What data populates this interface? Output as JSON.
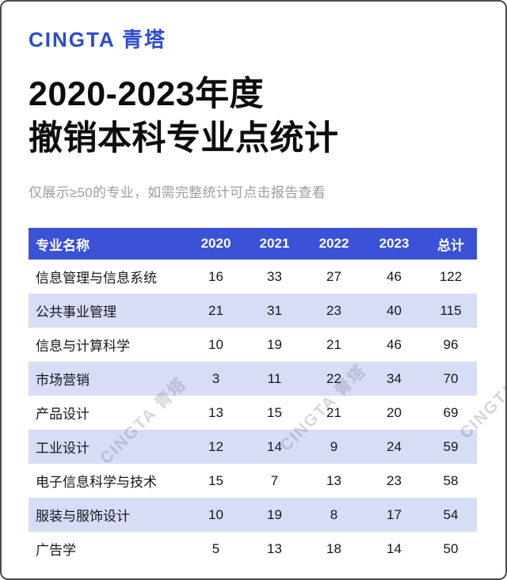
{
  "brand": {
    "logo_text": "CINGTA 青塔"
  },
  "title": {
    "line1": "2020-2023年度",
    "line2": "撤销本科专业点统计"
  },
  "subtitle": "仅展示≥50的专业，如需完整统计可点击报告查看",
  "watermark": {
    "text": "CINGTA 青塔"
  },
  "colors": {
    "brand": "#2B4BD1",
    "table_header_bg": "#3B51D6",
    "table_stripe_bg": "#D7DDF5"
  },
  "table": {
    "columns": [
      "专业名称",
      "2020",
      "2021",
      "2022",
      "2023",
      "总计"
    ],
    "rows": [
      {
        "name": "信息管理与信息系统",
        "values": [
          16,
          33,
          27,
          46,
          122
        ]
      },
      {
        "name": "公共事业管理",
        "values": [
          21,
          31,
          23,
          40,
          115
        ]
      },
      {
        "name": "信息与计算科学",
        "values": [
          10,
          19,
          21,
          46,
          96
        ]
      },
      {
        "name": "市场营销",
        "values": [
          3,
          11,
          22,
          34,
          70
        ]
      },
      {
        "name": "产品设计",
        "values": [
          13,
          15,
          21,
          20,
          69
        ]
      },
      {
        "name": "工业设计",
        "values": [
          12,
          14,
          9,
          24,
          59
        ]
      },
      {
        "name": "电子信息科学与技术",
        "values": [
          15,
          7,
          13,
          23,
          58
        ]
      },
      {
        "name": "服装与服饰设计",
        "values": [
          10,
          19,
          8,
          17,
          54
        ]
      },
      {
        "name": "广告学",
        "values": [
          5,
          13,
          18,
          14,
          50
        ]
      }
    ]
  },
  "chart_data": {
    "type": "table",
    "title": "2020-2023年度撤销本科专业点统计",
    "subtitle": "仅展示≥50的专业，如需完整统计可点击报告查看",
    "columns": [
      "专业名称",
      "2020",
      "2021",
      "2022",
      "2023",
      "总计"
    ],
    "rows": [
      [
        "信息管理与信息系统",
        16,
        33,
        27,
        46,
        122
      ],
      [
        "公共事业管理",
        21,
        31,
        23,
        40,
        115
      ],
      [
        "信息与计算科学",
        10,
        19,
        21,
        46,
        96
      ],
      [
        "市场营销",
        3,
        11,
        22,
        34,
        70
      ],
      [
        "产品设计",
        13,
        15,
        21,
        20,
        69
      ],
      [
        "工业设计",
        12,
        14,
        9,
        24,
        59
      ],
      [
        "电子信息科学与技术",
        15,
        7,
        13,
        23,
        58
      ],
      [
        "服装与服饰设计",
        10,
        19,
        8,
        17,
        54
      ],
      [
        "广告学",
        5,
        13,
        18,
        14,
        50
      ]
    ]
  }
}
